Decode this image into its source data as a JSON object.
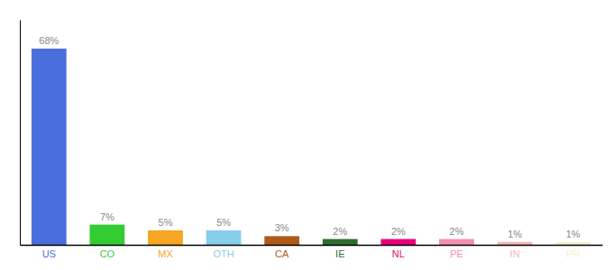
{
  "chart_data": {
    "type": "bar",
    "categories": [
      "US",
      "CO",
      "MX",
      "OTH",
      "CA",
      "IE",
      "NL",
      "PE",
      "IN",
      "PR"
    ],
    "values": [
      68,
      7,
      5,
      5,
      3,
      2,
      2,
      2,
      1,
      1
    ],
    "value_labels": [
      "68%",
      "7%",
      "5%",
      "5%",
      "3%",
      "2%",
      "2%",
      "2%",
      "1%",
      "1%"
    ],
    "colors": [
      "#4a6fdc",
      "#33cc33",
      "#f5a623",
      "#87ceeb",
      "#b05a1a",
      "#2d6e2d",
      "#e8007a",
      "#f48fb1",
      "#f9b8b8",
      "#f5f0d0"
    ],
    "ylim": [
      0,
      78
    ],
    "yticks": [],
    "grid": false,
    "data_labels": true,
    "tick_labels": "x"
  }
}
